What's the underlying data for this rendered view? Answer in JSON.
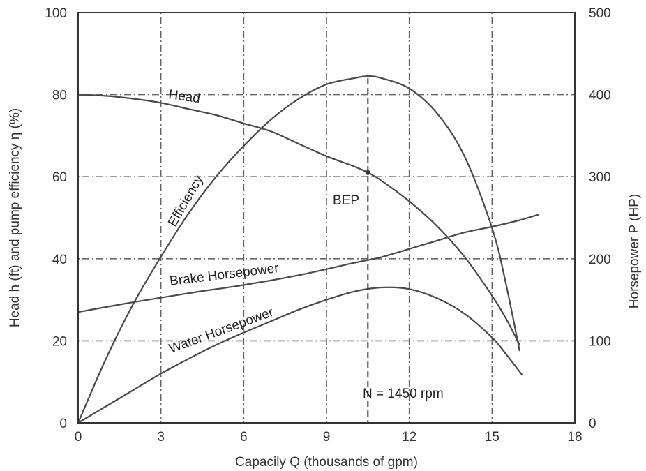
{
  "chart_data": {
    "type": "line",
    "xlabel": "Capacily Q (thousands of gpm)",
    "ylabel_left": "Head h (ft) and pump efficiency η (%)",
    "ylabel_right": "Horsepower P (HP)",
    "xlim": [
      0,
      18
    ],
    "ylim_left": [
      0,
      100
    ],
    "ylim_right": [
      0,
      500
    ],
    "x_ticks": [
      "0",
      "3",
      "6",
      "9",
      "12",
      "15",
      "18"
    ],
    "y_left_ticks": [
      "0",
      "20",
      "40",
      "60",
      "80",
      "100"
    ],
    "y_right_ticks": [
      "0",
      "100",
      "200",
      "300",
      "400",
      "500"
    ],
    "grid": true,
    "annotation": "N = 1450 rpm",
    "bep_label": "BEP",
    "bep_point": {
      "x": 10.5,
      "y": 61
    },
    "bep_peak_efficiency": 84,
    "series": [
      {
        "name": "Head",
        "axis": "left",
        "x": [
          0,
          1,
          2,
          3,
          4,
          5,
          6,
          7,
          8,
          9,
          10,
          10.5,
          11,
          12,
          13,
          14,
          15,
          15.5,
          16
        ],
        "y": [
          80,
          79.7,
          79,
          78,
          76.5,
          75,
          73,
          71,
          68,
          65,
          62.5,
          61,
          59,
          54,
          48,
          40.5,
          31,
          25.5,
          19
        ]
      },
      {
        "name": "Efficiency",
        "axis": "left",
        "x": [
          0,
          1,
          2,
          3,
          4,
          5,
          6,
          7,
          8,
          9,
          10,
          10.5,
          11,
          12,
          13,
          14,
          15,
          15.5,
          16
        ],
        "y": [
          0,
          15.5,
          29,
          40.5,
          51,
          60,
          67.5,
          74,
          79,
          82.5,
          84,
          84.5,
          84,
          81.5,
          75.5,
          65,
          47.5,
          34,
          17.5
        ]
      },
      {
        "name": "Brake Horsepower",
        "axis": "right",
        "x": [
          0,
          2,
          4,
          6,
          8,
          10,
          11,
          12,
          13,
          14,
          15,
          16,
          16.7
        ],
        "y": [
          135,
          147,
          158,
          168,
          180,
          195,
          202,
          212,
          222,
          232,
          239,
          247,
          254
        ]
      },
      {
        "name": "Water Horsepower",
        "axis": "right",
        "x": [
          0,
          1,
          2,
          3,
          4,
          5,
          6,
          7,
          8,
          9,
          10,
          11,
          12,
          13,
          14,
          15,
          15.5,
          16.1
        ],
        "y": [
          0,
          20,
          40,
          60,
          78,
          95,
          110,
          124,
          138,
          150,
          160,
          165,
          163,
          152,
          133,
          104,
          84,
          58
        ]
      }
    ]
  }
}
